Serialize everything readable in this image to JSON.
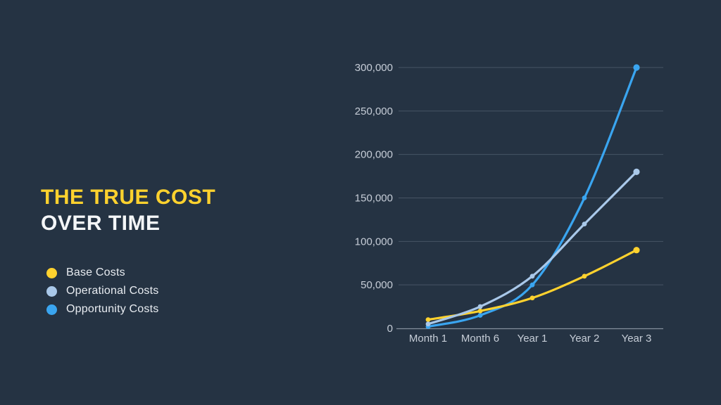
{
  "slide": {
    "background": "#253343",
    "title_line1": "THE TRUE COST",
    "title_line2": "OVER TIME",
    "title_line1_color": "#FFD22E",
    "title_line2_color": "#F4F6F8"
  },
  "legend": {
    "items": [
      {
        "label": "Base Costs",
        "color": "#FFD22E",
        "icon": "circle-swatch-icon"
      },
      {
        "label": "Operational Costs",
        "color": "#A9C8E9",
        "icon": "circle-swatch-icon"
      },
      {
        "label": "Opportunity Costs",
        "color": "#3AA5F0",
        "icon": "circle-swatch-icon"
      }
    ],
    "text_color": "#E8ECF1"
  },
  "chart_data": {
    "type": "line",
    "title": "",
    "xlabel": "",
    "ylabel": "",
    "categories": [
      "Month 1",
      "Month 6",
      "Year 1",
      "Year 2",
      "Year 3"
    ],
    "series": [
      {
        "name": "Base Costs",
        "color": "#FFD22E",
        "values": [
          10000,
          20000,
          35000,
          60000,
          90000
        ]
      },
      {
        "name": "Operational Costs",
        "color": "#A9C8E9",
        "values": [
          5000,
          25000,
          60000,
          120000,
          180000
        ]
      },
      {
        "name": "Opportunity Costs",
        "color": "#3AA5F0",
        "values": [
          2000,
          15000,
          50000,
          150000,
          300000
        ]
      }
    ],
    "draw_order": [
      2,
      0,
      1
    ],
    "ylim": [
      0,
      300000
    ],
    "ytick_step": 50000,
    "ytick_labels": [
      "0",
      "50,000",
      "100,000",
      "150,000",
      "200,000",
      "250,000",
      "300,000"
    ],
    "grid": true,
    "legend_position": "left-panel",
    "smooth_lines": true
  },
  "axis_style": {
    "tick_label_color": "#C6CDD7",
    "grid_color": "rgba(198,206,218,0.22)",
    "axis_line_color": "rgba(198,206,218,0.6)"
  }
}
